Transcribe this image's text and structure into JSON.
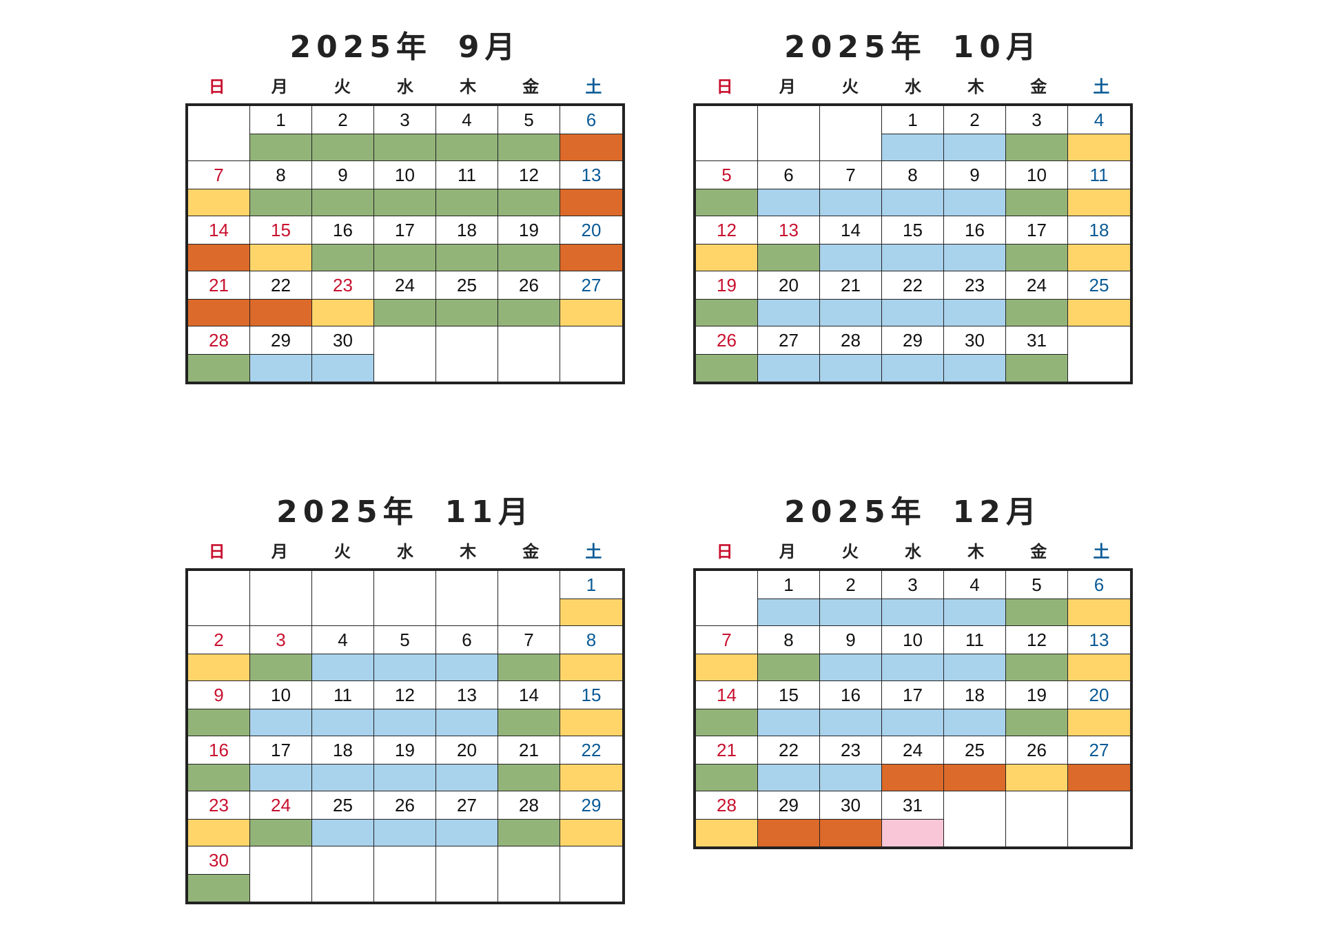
{
  "weekday_headers": [
    "日",
    "月",
    "火",
    "水",
    "木",
    "金",
    "土"
  ],
  "weekday_colors": {
    "sun": "#c8102e",
    "sat": "#0a5a96",
    "default": "#222222"
  },
  "band_colors": {
    "green": "#93b479",
    "blue": "#a9d2ec",
    "yellow": "#ffd56a",
    "orange": "#dc6a2a",
    "pink": "#f8c6d6",
    "none": "#ffffff"
  },
  "calendars": [
    {
      "year_label": "2025年",
      "month_label": "9月",
      "weeks": [
        [
          null,
          {
            "d": "1",
            "c": "green"
          },
          {
            "d": "2",
            "c": "green"
          },
          {
            "d": "3",
            "c": "green"
          },
          {
            "d": "4",
            "c": "green"
          },
          {
            "d": "5",
            "c": "green"
          },
          {
            "d": "6",
            "c": "orange"
          }
        ],
        [
          {
            "d": "7",
            "c": "yellow"
          },
          {
            "d": "8",
            "c": "green"
          },
          {
            "d": "9",
            "c": "green"
          },
          {
            "d": "10",
            "c": "green"
          },
          {
            "d": "11",
            "c": "green"
          },
          {
            "d": "12",
            "c": "green"
          },
          {
            "d": "13",
            "c": "orange"
          }
        ],
        [
          {
            "d": "14",
            "c": "orange"
          },
          {
            "d": "15",
            "c": "yellow",
            "hol": true
          },
          {
            "d": "16",
            "c": "green"
          },
          {
            "d": "17",
            "c": "green"
          },
          {
            "d": "18",
            "c": "green"
          },
          {
            "d": "19",
            "c": "green"
          },
          {
            "d": "20",
            "c": "orange"
          }
        ],
        [
          {
            "d": "21",
            "c": "orange"
          },
          {
            "d": "22",
            "c": "orange"
          },
          {
            "d": "23",
            "c": "yellow",
            "hol": true
          },
          {
            "d": "24",
            "c": "green"
          },
          {
            "d": "25",
            "c": "green"
          },
          {
            "d": "26",
            "c": "green"
          },
          {
            "d": "27",
            "c": "yellow"
          }
        ],
        [
          {
            "d": "28",
            "c": "green"
          },
          {
            "d": "29",
            "c": "blue"
          },
          {
            "d": "30",
            "c": "blue"
          },
          null,
          null,
          null,
          null
        ]
      ]
    },
    {
      "year_label": "2025年",
      "month_label": "10月",
      "weeks": [
        [
          null,
          null,
          null,
          {
            "d": "1",
            "c": "blue"
          },
          {
            "d": "2",
            "c": "blue"
          },
          {
            "d": "3",
            "c": "green"
          },
          {
            "d": "4",
            "c": "yellow"
          }
        ],
        [
          {
            "d": "5",
            "c": "green"
          },
          {
            "d": "6",
            "c": "blue"
          },
          {
            "d": "7",
            "c": "blue"
          },
          {
            "d": "8",
            "c": "blue"
          },
          {
            "d": "9",
            "c": "blue"
          },
          {
            "d": "10",
            "c": "green"
          },
          {
            "d": "11",
            "c": "yellow"
          }
        ],
        [
          {
            "d": "12",
            "c": "yellow"
          },
          {
            "d": "13",
            "c": "green",
            "hol": true
          },
          {
            "d": "14",
            "c": "blue"
          },
          {
            "d": "15",
            "c": "blue"
          },
          {
            "d": "16",
            "c": "blue"
          },
          {
            "d": "17",
            "c": "green"
          },
          {
            "d": "18",
            "c": "yellow"
          }
        ],
        [
          {
            "d": "19",
            "c": "green"
          },
          {
            "d": "20",
            "c": "blue"
          },
          {
            "d": "21",
            "c": "blue"
          },
          {
            "d": "22",
            "c": "blue"
          },
          {
            "d": "23",
            "c": "blue"
          },
          {
            "d": "24",
            "c": "green"
          },
          {
            "d": "25",
            "c": "yellow"
          }
        ],
        [
          {
            "d": "26",
            "c": "green"
          },
          {
            "d": "27",
            "c": "blue"
          },
          {
            "d": "28",
            "c": "blue"
          },
          {
            "d": "29",
            "c": "blue"
          },
          {
            "d": "30",
            "c": "blue"
          },
          {
            "d": "31",
            "c": "green"
          },
          null
        ]
      ]
    },
    {
      "year_label": "2025年",
      "month_label": "11月",
      "weeks": [
        [
          null,
          null,
          null,
          null,
          null,
          null,
          {
            "d": "1",
            "c": "yellow"
          }
        ],
        [
          {
            "d": "2",
            "c": "yellow"
          },
          {
            "d": "3",
            "c": "green",
            "hol": true
          },
          {
            "d": "4",
            "c": "blue"
          },
          {
            "d": "5",
            "c": "blue"
          },
          {
            "d": "6",
            "c": "blue"
          },
          {
            "d": "7",
            "c": "green"
          },
          {
            "d": "8",
            "c": "yellow"
          }
        ],
        [
          {
            "d": "9",
            "c": "green"
          },
          {
            "d": "10",
            "c": "blue"
          },
          {
            "d": "11",
            "c": "blue"
          },
          {
            "d": "12",
            "c": "blue"
          },
          {
            "d": "13",
            "c": "blue"
          },
          {
            "d": "14",
            "c": "green"
          },
          {
            "d": "15",
            "c": "yellow"
          }
        ],
        [
          {
            "d": "16",
            "c": "green"
          },
          {
            "d": "17",
            "c": "blue"
          },
          {
            "d": "18",
            "c": "blue"
          },
          {
            "d": "19",
            "c": "blue"
          },
          {
            "d": "20",
            "c": "blue"
          },
          {
            "d": "21",
            "c": "green"
          },
          {
            "d": "22",
            "c": "yellow"
          }
        ],
        [
          {
            "d": "23",
            "c": "yellow"
          },
          {
            "d": "24",
            "c": "green",
            "hol": true
          },
          {
            "d": "25",
            "c": "blue"
          },
          {
            "d": "26",
            "c": "blue"
          },
          {
            "d": "27",
            "c": "blue"
          },
          {
            "d": "28",
            "c": "green"
          },
          {
            "d": "29",
            "c": "yellow"
          }
        ],
        [
          {
            "d": "30",
            "c": "green"
          },
          null,
          null,
          null,
          null,
          null,
          null
        ]
      ]
    },
    {
      "year_label": "2025年",
      "month_label": "12月",
      "weeks": [
        [
          null,
          {
            "d": "1",
            "c": "blue"
          },
          {
            "d": "2",
            "c": "blue"
          },
          {
            "d": "3",
            "c": "blue"
          },
          {
            "d": "4",
            "c": "blue"
          },
          {
            "d": "5",
            "c": "green"
          },
          {
            "d": "6",
            "c": "yellow"
          }
        ],
        [
          {
            "d": "7",
            "c": "yellow"
          },
          {
            "d": "8",
            "c": "green"
          },
          {
            "d": "9",
            "c": "blue"
          },
          {
            "d": "10",
            "c": "blue"
          },
          {
            "d": "11",
            "c": "blue"
          },
          {
            "d": "12",
            "c": "green"
          },
          {
            "d": "13",
            "c": "yellow"
          }
        ],
        [
          {
            "d": "14",
            "c": "green"
          },
          {
            "d": "15",
            "c": "blue"
          },
          {
            "d": "16",
            "c": "blue"
          },
          {
            "d": "17",
            "c": "blue"
          },
          {
            "d": "18",
            "c": "blue"
          },
          {
            "d": "19",
            "c": "green"
          },
          {
            "d": "20",
            "c": "yellow"
          }
        ],
        [
          {
            "d": "21",
            "c": "green"
          },
          {
            "d": "22",
            "c": "blue"
          },
          {
            "d": "23",
            "c": "blue"
          },
          {
            "d": "24",
            "c": "orange"
          },
          {
            "d": "25",
            "c": "orange"
          },
          {
            "d": "26",
            "c": "yellow"
          },
          {
            "d": "27",
            "c": "orange"
          }
        ],
        [
          {
            "d": "28",
            "c": "yellow"
          },
          {
            "d": "29",
            "c": "orange"
          },
          {
            "d": "30",
            "c": "orange"
          },
          {
            "d": "31",
            "c": "pink"
          },
          null,
          null,
          null
        ]
      ]
    }
  ]
}
